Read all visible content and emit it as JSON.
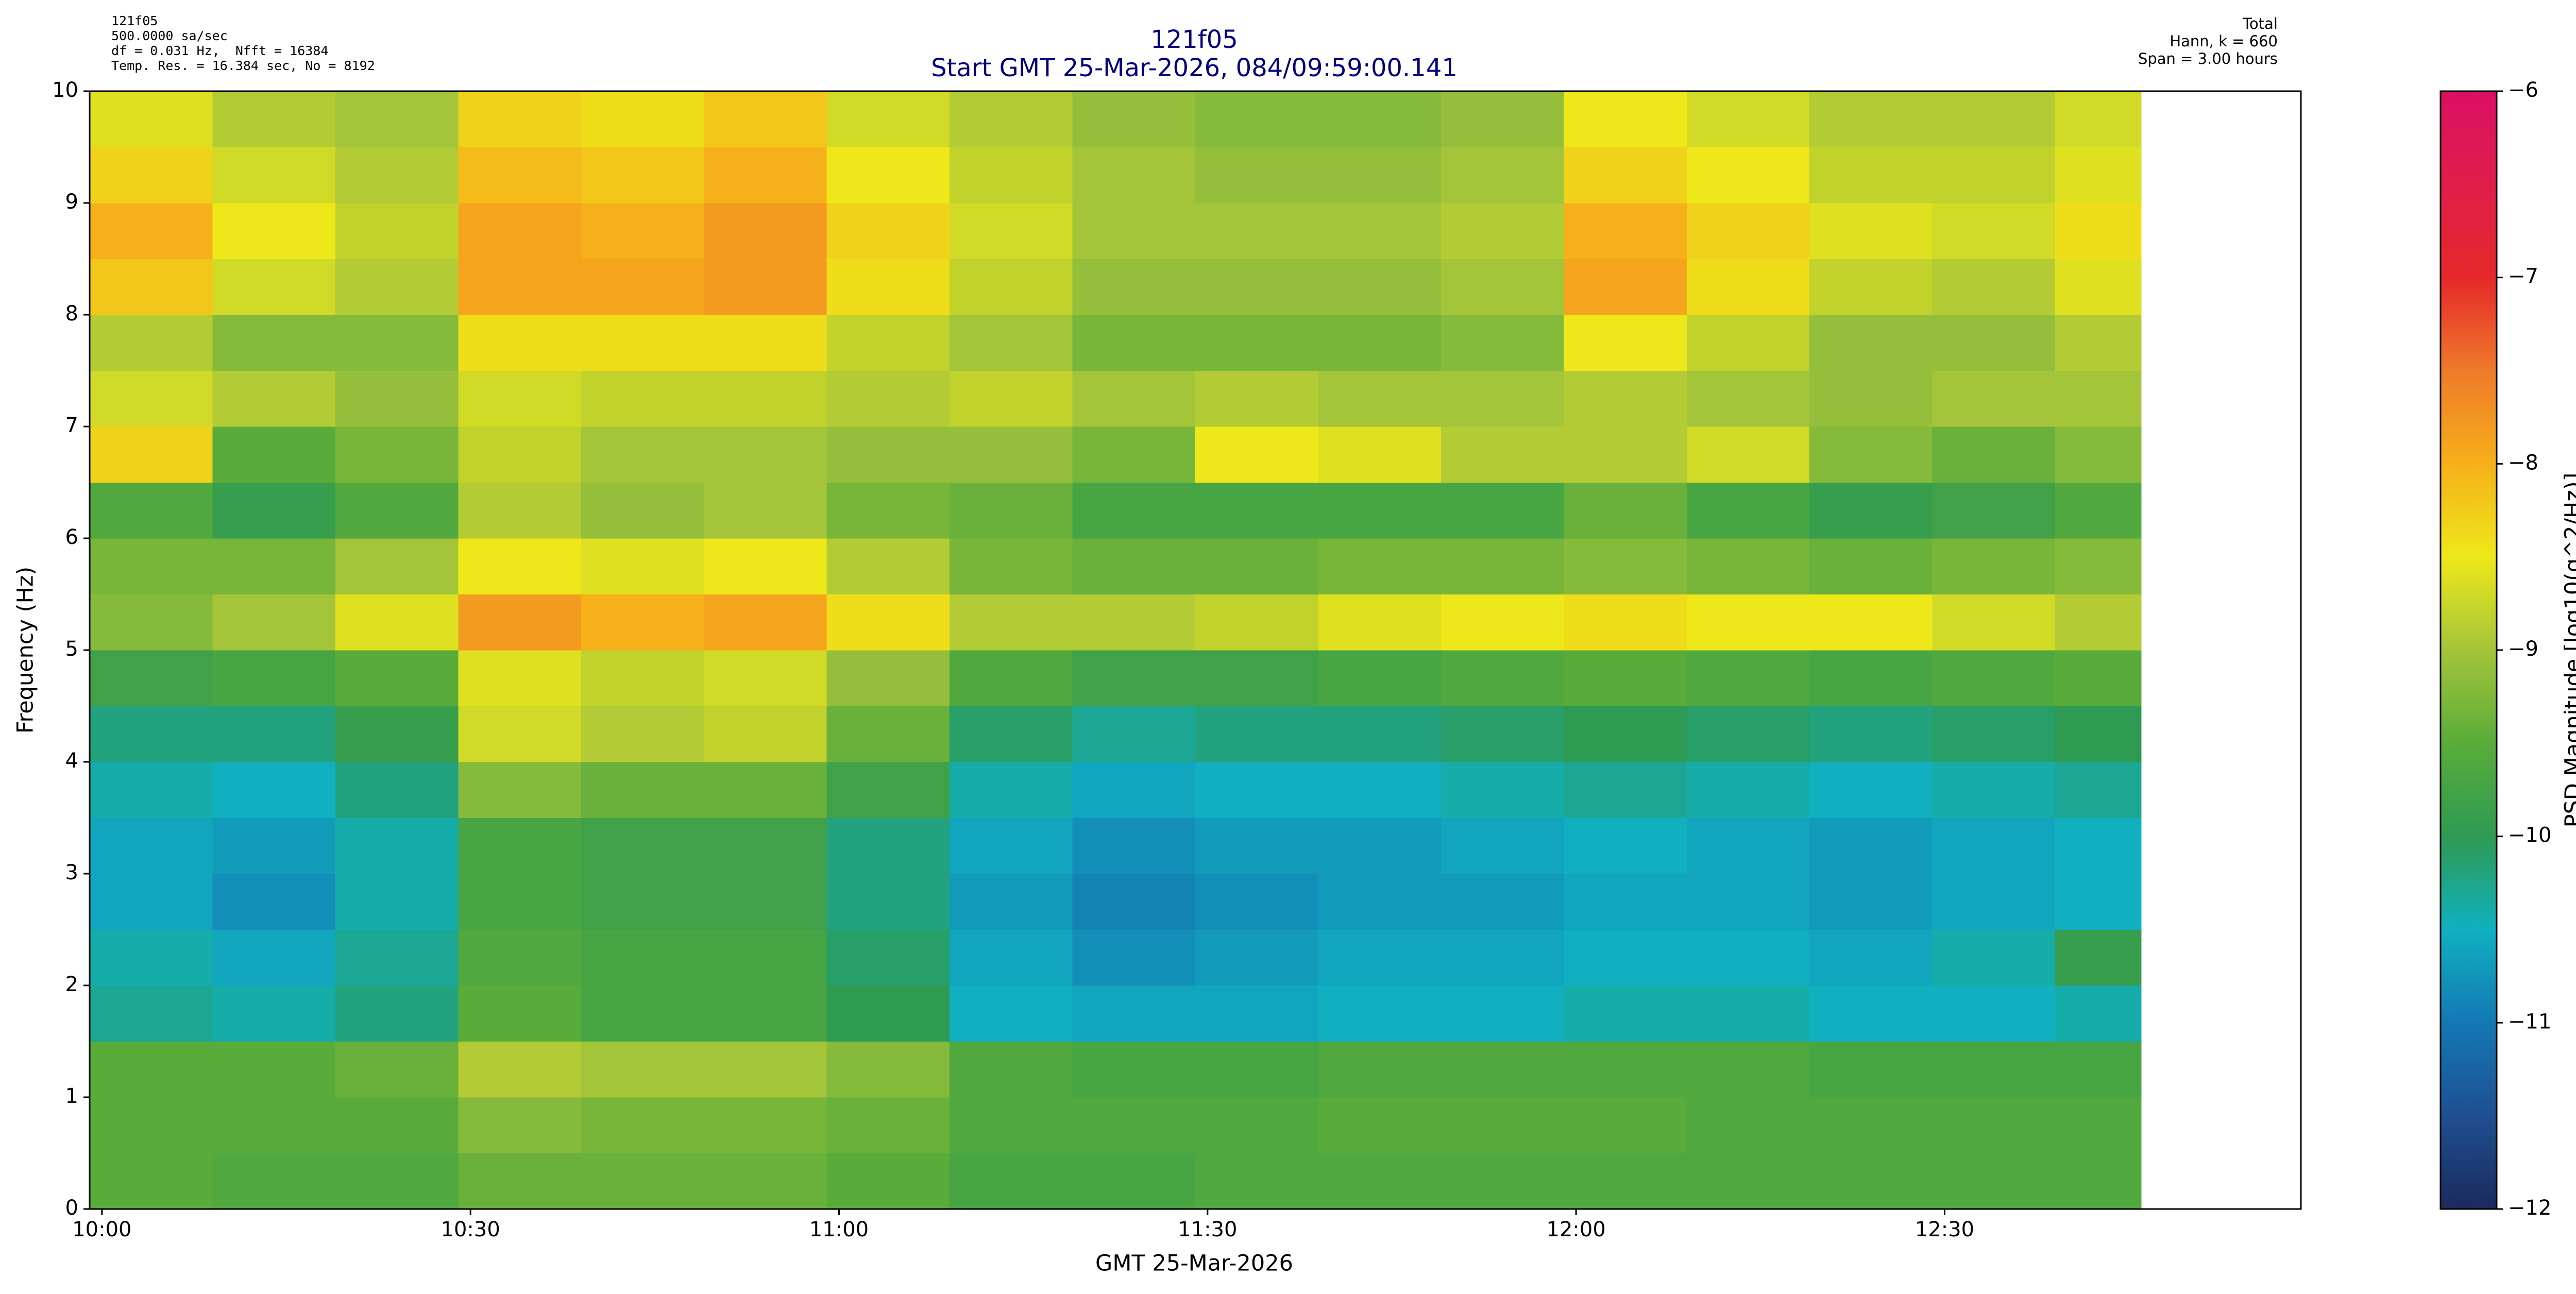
{
  "chart_data": {
    "type": "heatmap",
    "title": "121f05",
    "subtitle": "Start GMT 25-Mar-2026, 084/09:59:00.141",
    "annotations": [
      "121f05",
      "500.0000 sa/sec",
      "df = 0.031 Hz,  Nfft = 16384",
      "Temp. Res. = 16.384 sec, No = 8192"
    ],
    "annotations_right": [
      "Total",
      "Hann, k = 660",
      "Span = 3.00 hours"
    ],
    "xlabel": "GMT 25-Mar-2026",
    "ylabel": "Frequency (Hz)",
    "colorbar_label": "PSD Magnitude [log10(g^2/Hz)]",
    "x": [
      "09:59",
      "10:09",
      "10:19",
      "10:29",
      "10:39",
      "10:49",
      "10:59",
      "11:09",
      "11:19",
      "11:29",
      "11:39",
      "11:49",
      "11:59",
      "12:09",
      "12:19",
      "12:29",
      "12:39",
      "12:46"
    ],
    "y": [
      0,
      0.5,
      1,
      1.5,
      2,
      2.5,
      3,
      3.5,
      4,
      4.5,
      5,
      5.5,
      6,
      6.5,
      7,
      7.5,
      8,
      8.5,
      9,
      9.5,
      10
    ],
    "values": [
      [
        -9.5,
        -9.6,
        -9.6,
        -9.4,
        -9.4,
        -9.4,
        -9.5,
        -9.7,
        -9.7,
        -9.6,
        -9.6,
        -9.6,
        -9.6,
        -9.6,
        -9.6,
        -9.6,
        -9.6
      ],
      [
        -9.5,
        -9.5,
        -9.5,
        -9.2,
        -9.3,
        -9.3,
        -9.4,
        -9.6,
        -9.6,
        -9.6,
        -9.5,
        -9.5,
        -9.5,
        -9.6,
        -9.6,
        -9.6,
        -9.6
      ],
      [
        -9.5,
        -9.5,
        -9.4,
        -8.9,
        -9.0,
        -9.0,
        -9.2,
        -9.6,
        -9.7,
        -9.7,
        -9.6,
        -9.6,
        -9.6,
        -9.6,
        -9.7,
        -9.7,
        -9.7
      ],
      [
        -10.3,
        -10.4,
        -10.2,
        -9.5,
        -9.7,
        -9.7,
        -10.0,
        -10.5,
        -10.6,
        -10.6,
        -10.5,
        -10.5,
        -10.4,
        -10.4,
        -10.5,
        -10.5,
        -10.4
      ],
      [
        -10.4,
        -10.6,
        -10.3,
        -9.6,
        -9.7,
        -9.7,
        -10.1,
        -10.6,
        -10.8,
        -10.7,
        -10.6,
        -10.6,
        -10.5,
        -10.5,
        -10.6,
        -10.4,
        -9.9
      ],
      [
        -10.6,
        -10.8,
        -10.4,
        -9.7,
        -9.8,
        -9.8,
        -10.2,
        -10.7,
        -10.9,
        -10.8,
        -10.7,
        -10.7,
        -10.6,
        -10.6,
        -10.7,
        -10.6,
        -10.5
      ],
      [
        -10.6,
        -10.7,
        -10.4,
        -9.7,
        -9.8,
        -9.8,
        -10.2,
        -10.6,
        -10.8,
        -10.7,
        -10.7,
        -10.6,
        -10.5,
        -10.6,
        -10.7,
        -10.6,
        -10.5
      ],
      [
        -10.4,
        -10.5,
        -10.2,
        -9.2,
        -9.4,
        -9.4,
        -9.8,
        -10.4,
        -10.6,
        -10.5,
        -10.5,
        -10.4,
        -10.3,
        -10.4,
        -10.5,
        -10.4,
        -10.3
      ],
      [
        -10.2,
        -10.2,
        -9.9,
        -8.7,
        -8.9,
        -8.8,
        -9.4,
        -10.1,
        -10.3,
        -10.2,
        -10.2,
        -10.1,
        -10.0,
        -10.1,
        -10.2,
        -10.1,
        -10.0
      ],
      [
        -9.8,
        -9.7,
        -9.5,
        -8.6,
        -8.8,
        -8.7,
        -9.1,
        -9.6,
        -9.8,
        -9.8,
        -9.7,
        -9.6,
        -9.5,
        -9.6,
        -9.7,
        -9.6,
        -9.5
      ],
      [
        -9.2,
        -9.0,
        -8.6,
        -7.8,
        -8.0,
        -7.9,
        -8.4,
        -8.9,
        -8.9,
        -8.8,
        -8.6,
        -8.5,
        -8.4,
        -8.5,
        -8.5,
        -8.7,
        -8.9
      ],
      [
        -9.3,
        -9.3,
        -9.0,
        -8.5,
        -8.6,
        -8.5,
        -8.9,
        -9.3,
        -9.4,
        -9.4,
        -9.3,
        -9.3,
        -9.2,
        -9.3,
        -9.4,
        -9.3,
        -9.2
      ],
      [
        -9.6,
        -9.9,
        -9.6,
        -8.9,
        -9.1,
        -9.0,
        -9.3,
        -9.4,
        -9.7,
        -9.7,
        -9.7,
        -9.7,
        -9.4,
        -9.7,
        -9.9,
        -9.8,
        -9.6
      ],
      [
        -8.3,
        -9.5,
        -9.3,
        -8.8,
        -9.0,
        -9.0,
        -9.1,
        -9.1,
        -9.3,
        -8.5,
        -8.6,
        -8.9,
        -8.9,
        -8.7,
        -9.2,
        -9.4,
        -9.2
      ],
      [
        -8.7,
        -8.9,
        -9.1,
        -8.7,
        -8.8,
        -8.8,
        -8.9,
        -8.8,
        -9.0,
        -8.9,
        -9.0,
        -9.0,
        -8.9,
        -9.0,
        -9.1,
        -9.0,
        -9.0
      ],
      [
        -8.9,
        -9.2,
        -9.2,
        -8.4,
        -8.4,
        -8.4,
        -8.8,
        -9.0,
        -9.3,
        -9.3,
        -9.3,
        -9.2,
        -8.5,
        -8.8,
        -9.1,
        -9.1,
        -8.9
      ],
      [
        -8.2,
        -8.7,
        -8.9,
        -7.9,
        -7.9,
        -7.8,
        -8.4,
        -8.8,
        -9.1,
        -9.1,
        -9.1,
        -9.0,
        -7.9,
        -8.4,
        -8.8,
        -8.9,
        -8.6
      ],
      [
        -8.0,
        -8.5,
        -8.8,
        -7.9,
        -8.0,
        -7.8,
        -8.3,
        -8.7,
        -9.0,
        -9.0,
        -9.0,
        -8.9,
        -8.0,
        -8.3,
        -8.6,
        -8.7,
        -8.4
      ],
      [
        -8.3,
        -8.7,
        -8.9,
        -8.1,
        -8.2,
        -8.0,
        -8.5,
        -8.8,
        -9.0,
        -9.1,
        -9.1,
        -9.0,
        -8.3,
        -8.5,
        -8.8,
        -8.8,
        -8.6
      ],
      [
        -8.6,
        -8.9,
        -9.0,
        -8.3,
        -8.4,
        -8.2,
        -8.7,
        -8.9,
        -9.1,
        -9.2,
        -9.2,
        -9.1,
        -8.5,
        -8.7,
        -8.9,
        -8.9,
        -8.7
      ]
    ],
    "xlim": [
      "09:59",
      "12:59"
    ],
    "xticks": [
      "10:00",
      "10:30",
      "11:00",
      "11:30",
      "12:00",
      "12:30"
    ],
    "ylim": [
      0,
      10
    ],
    "yticks": [
      0,
      1,
      2,
      3,
      4,
      5,
      6,
      7,
      8,
      9,
      10
    ],
    "clim": [
      -12,
      -6
    ],
    "cticks": [
      {
        "value": -12,
        "label": "−12"
      },
      {
        "value": -11,
        "label": "−11"
      },
      {
        "value": -10,
        "label": "−10"
      },
      {
        "value": -9,
        "label": "−9"
      },
      {
        "value": -8,
        "label": "−8"
      },
      {
        "value": -7,
        "label": "−7"
      },
      {
        "value": -6,
        "label": "−6"
      }
    ],
    "colormap": [
      "#1b2a5c",
      "#1f4f92",
      "#1478b4",
      "#10b0c0",
      "#2e9a52",
      "#5aac3a",
      "#a4c43a",
      "#eee81a",
      "#f6b01a",
      "#ef7a2a",
      "#e5282a",
      "#e01e4a",
      "#db0f63"
    ],
    "title_color": "#000080"
  }
}
